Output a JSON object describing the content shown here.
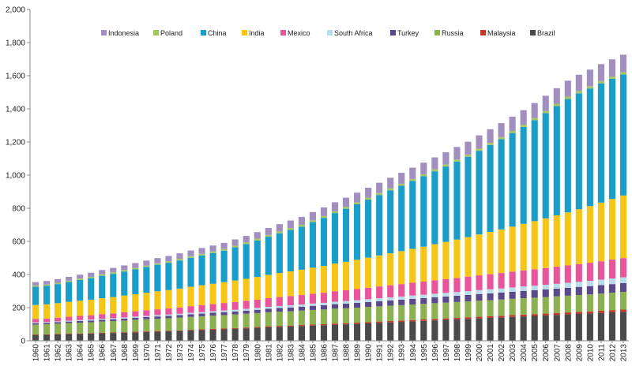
{
  "chart_data": {
    "type": "bar",
    "stacked": true,
    "title": "",
    "xlabel": "",
    "ylabel": "",
    "ylim": [
      0,
      2000
    ],
    "yticks": [
      "0",
      "200",
      "400",
      "600",
      "800",
      "1,000",
      "1,200",
      "1,400",
      "1,600",
      "1,800",
      "2,000"
    ],
    "grid": false,
    "legend_position": "top",
    "legend_order": [
      "Indonesia",
      "Poland",
      "China",
      "India",
      "Mexico",
      "South Africa",
      "Turkey",
      "Russia",
      "Malaysia",
      "Brazil"
    ],
    "categories": [
      "1960",
      "1961",
      "1962",
      "1963",
      "1964",
      "1965",
      "1966",
      "1967",
      "1968",
      "1969",
      "1970",
      "1971",
      "1972",
      "1973",
      "1974",
      "1975",
      "1976",
      "1977",
      "1978",
      "1979",
      "1980",
      "1981",
      "1982",
      "1983",
      "1984",
      "1985",
      "1986",
      "1987",
      "1988",
      "1989",
      "1990",
      "1991",
      "1992",
      "1993",
      "1994",
      "1995",
      "1996",
      "1997",
      "1998",
      "1999",
      "2000",
      "2001",
      "2002",
      "2003",
      "2004",
      "2005",
      "2006",
      "2007",
      "2008",
      "2009",
      "2010",
      "2011",
      "2012",
      "2013"
    ],
    "series": [
      {
        "name": "Brazil",
        "color": "#4a4a4a",
        "values": [
          35,
          36,
          38,
          40,
          41,
          43,
          45,
          47,
          49,
          51,
          53,
          55,
          57,
          59,
          62,
          64,
          67,
          69,
          72,
          75,
          78,
          81,
          84,
          86,
          89,
          92,
          94,
          97,
          99,
          102,
          105,
          108,
          111,
          114,
          117,
          120,
          123,
          126,
          129,
          132,
          135,
          138,
          141,
          144,
          147,
          150,
          153,
          156,
          159,
          162,
          165,
          168,
          172,
          175
        ]
      },
      {
        "name": "Malaysia",
        "color": "#c0392b",
        "values": [
          3,
          3,
          3,
          3,
          3,
          3,
          3,
          3,
          3,
          4,
          4,
          4,
          4,
          4,
          4,
          5,
          5,
          5,
          5,
          5,
          5,
          6,
          6,
          6,
          6,
          6,
          6,
          7,
          7,
          7,
          7,
          8,
          8,
          8,
          8,
          9,
          9,
          9,
          9,
          10,
          10,
          10,
          10,
          11,
          11,
          11,
          11,
          12,
          12,
          12,
          12,
          13,
          13,
          13
        ]
      },
      {
        "name": "Russia",
        "color": "#8db050",
        "values": [
          60,
          61,
          62,
          64,
          65,
          66,
          68,
          69,
          70,
          72,
          73,
          74,
          75,
          77,
          78,
          79,
          80,
          81,
          82,
          83,
          84,
          85,
          86,
          86,
          87,
          88,
          89,
          90,
          90,
          91,
          92,
          92,
          93,
          93,
          94,
          94,
          95,
          95,
          96,
          96,
          97,
          97,
          98,
          98,
          99,
          99,
          100,
          100,
          101,
          102,
          103,
          104,
          105,
          107
        ]
      },
      {
        "name": "Turkey",
        "color": "#5b4a8b",
        "values": [
          8,
          8,
          9,
          9,
          10,
          10,
          11,
          11,
          12,
          12,
          13,
          14,
          14,
          15,
          16,
          16,
          17,
          18,
          18,
          19,
          20,
          21,
          22,
          23,
          24,
          25,
          26,
          27,
          28,
          29,
          30,
          31,
          32,
          33,
          34,
          35,
          36,
          37,
          38,
          39,
          40,
          41,
          42,
          43,
          44,
          45,
          46,
          47,
          48,
          49,
          50,
          51,
          52,
          53
        ]
      },
      {
        "name": "South Africa",
        "color": "#b8dcea",
        "values": [
          5,
          5,
          5,
          5,
          6,
          6,
          6,
          6,
          7,
          7,
          7,
          8,
          8,
          8,
          9,
          9,
          9,
          10,
          10,
          11,
          11,
          12,
          12,
          13,
          13,
          14,
          14,
          15,
          16,
          16,
          17,
          18,
          18,
          19,
          20,
          20,
          21,
          22,
          22,
          23,
          24,
          25,
          25,
          26,
          27,
          28,
          28,
          29,
          30,
          31,
          32,
          33,
          34,
          35
        ]
      },
      {
        "name": "Mexico",
        "color": "#e8559a",
        "values": [
          20,
          21,
          22,
          24,
          25,
          26,
          28,
          29,
          31,
          32,
          34,
          35,
          37,
          38,
          40,
          42,
          43,
          45,
          47,
          48,
          50,
          52,
          54,
          56,
          57,
          59,
          61,
          63,
          65,
          67,
          69,
          71,
          73,
          75,
          77,
          79,
          81,
          83,
          85,
          87,
          89,
          91,
          93,
          95,
          97,
          99,
          101,
          103,
          105,
          107,
          109,
          111,
          114,
          116
        ]
      },
      {
        "name": "India",
        "color": "#f5c518",
        "values": [
          85,
          86,
          88,
          90,
          92,
          94,
          96,
          99,
          101,
          103,
          106,
          109,
          111,
          114,
          117,
          120,
          123,
          126,
          130,
          133,
          137,
          141,
          145,
          149,
          153,
          157,
          162,
          167,
          172,
          177,
          182,
          187,
          193,
          199,
          205,
          211,
          218,
          225,
          232,
          239,
          247,
          255,
          263,
          272,
          281,
          290,
          300,
          310,
          320,
          331,
          342,
          354,
          366,
          378
        ]
      },
      {
        "name": "China",
        "color": "#1b9dc9",
        "values": [
          110,
          112,
          115,
          120,
          125,
          130,
          135,
          140,
          145,
          150,
          155,
          160,
          165,
          170,
          175,
          180,
          185,
          190,
          200,
          210,
          220,
          230,
          240,
          250,
          260,
          275,
          290,
          305,
          320,
          335,
          350,
          365,
          380,
          395,
          410,
          425,
          440,
          455,
          470,
          485,
          505,
          525,
          545,
          565,
          585,
          610,
          635,
          660,
          685,
          700,
          710,
          720,
          725,
          730
        ]
      },
      {
        "name": "Poland",
        "color": "#a5c664",
        "values": [
          8,
          8,
          8,
          8,
          8,
          8,
          9,
          9,
          9,
          9,
          9,
          9,
          9,
          10,
          10,
          10,
          10,
          10,
          10,
          10,
          11,
          11,
          11,
          11,
          11,
          11,
          11,
          11,
          11,
          12,
          12,
          12,
          12,
          12,
          12,
          12,
          12,
          12,
          13,
          13,
          13,
          13,
          13,
          13,
          13,
          13,
          13,
          14,
          14,
          14,
          14,
          14,
          14,
          14
        ]
      },
      {
        "name": "Indonesia",
        "color": "#a18fbf",
        "values": [
          20,
          21,
          22,
          23,
          24,
          25,
          26,
          27,
          28,
          29,
          30,
          31,
          32,
          33,
          34,
          35,
          36,
          37,
          38,
          39,
          40,
          42,
          44,
          46,
          48,
          50,
          52,
          54,
          56,
          58,
          60,
          62,
          64,
          66,
          68,
          70,
          72,
          74,
          76,
          78,
          80,
          82,
          84,
          86,
          88,
          90,
          92,
          94,
          96,
          98,
          100,
          102,
          104,
          106
        ]
      }
    ]
  }
}
